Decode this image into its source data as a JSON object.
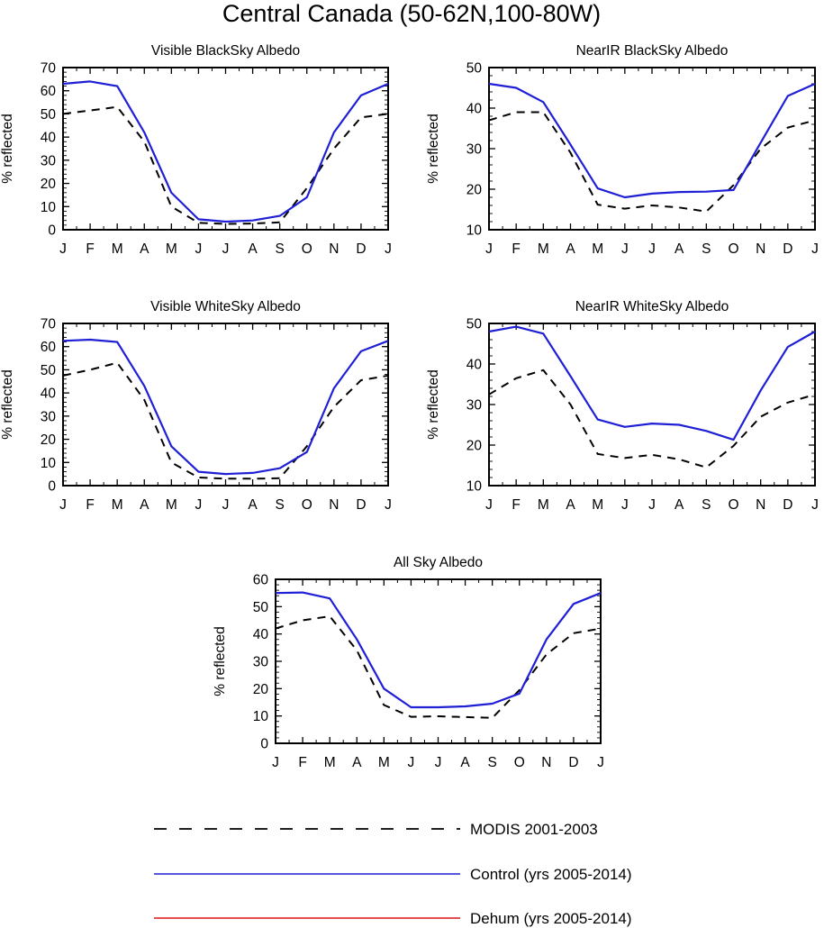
{
  "figure": {
    "title": "Central Canada (50-62N,100-80W)"
  },
  "colors": {
    "modis": "#000000",
    "control": "#1f1fd6",
    "dehum": "#e01010"
  },
  "legend": [
    {
      "label": "MODIS 2001-2003",
      "style": "dashed",
      "color": "#000000"
    },
    {
      "label": "Control (yrs 2005-2014)",
      "style": "solid",
      "color": "#1f1fd6"
    },
    {
      "label": "Dehum (yrs 2005-2014)",
      "style": "solid",
      "color": "#e01010"
    }
  ],
  "chart_data": [
    {
      "type": "line",
      "title": "Visible BlackSky Albedo",
      "ylabel": "% reflected",
      "categories": [
        "J",
        "F",
        "M",
        "A",
        "M",
        "J",
        "J",
        "A",
        "S",
        "O",
        "N",
        "D",
        "J"
      ],
      "ylim": [
        0,
        70
      ],
      "yticks": [
        0,
        10,
        20,
        30,
        40,
        50,
        60,
        70
      ],
      "series": [
        {
          "name": "MODIS 2001-2003",
          "values": [
            50,
            51.5,
            53,
            38,
            10,
            3,
            2.5,
            2.7,
            3.2,
            18,
            35,
            48.5,
            50
          ]
        },
        {
          "name": "Control (yrs 2005-2014)",
          "values": [
            63,
            64,
            62,
            42,
            16,
            4.5,
            3.5,
            4,
            6,
            14,
            42,
            58,
            63
          ]
        }
      ]
    },
    {
      "type": "line",
      "title": "NearIR BlackSky Albedo",
      "ylabel": "% reflected",
      "categories": [
        "J",
        "F",
        "M",
        "A",
        "M",
        "J",
        "J",
        "A",
        "S",
        "O",
        "N",
        "D",
        "J"
      ],
      "ylim": [
        10,
        50
      ],
      "yticks": [
        10,
        20,
        30,
        40,
        50
      ],
      "series": [
        {
          "name": "MODIS 2001-2003",
          "values": [
            37,
            39,
            39,
            29,
            16.2,
            15.2,
            16,
            15.5,
            14.5,
            21,
            30,
            35.2,
            37
          ]
        },
        {
          "name": "Control (yrs 2005-2014)",
          "values": [
            46,
            45,
            41.5,
            31,
            20.2,
            18,
            18.9,
            19.3,
            19.4,
            19.8,
            31.5,
            43,
            46
          ]
        }
      ]
    },
    {
      "type": "line",
      "title": "Visible WhiteSky Albedo",
      "ylabel": "% reflected",
      "categories": [
        "J",
        "F",
        "M",
        "A",
        "M",
        "J",
        "J",
        "A",
        "S",
        "O",
        "N",
        "D",
        "J"
      ],
      "ylim": [
        0,
        70
      ],
      "yticks": [
        0,
        10,
        20,
        30,
        40,
        50,
        60,
        70
      ],
      "series": [
        {
          "name": "MODIS 2001-2003",
          "values": [
            47.5,
            50,
            53,
            37,
            10,
            3.5,
            3,
            3,
            3.2,
            17,
            34,
            45.5,
            47.5
          ]
        },
        {
          "name": "Control (yrs 2005-2014)",
          "values": [
            62.5,
            63,
            62,
            43,
            17,
            6,
            5,
            5.5,
            7.5,
            14.5,
            42,
            58,
            62.5
          ]
        }
      ]
    },
    {
      "type": "line",
      "title": "NearIR WhiteSky Albedo",
      "ylabel": "% reflected",
      "categories": [
        "J",
        "F",
        "M",
        "A",
        "M",
        "J",
        "J",
        "A",
        "S",
        "O",
        "N",
        "D",
        "J"
      ],
      "ylim": [
        10,
        50
      ],
      "yticks": [
        10,
        20,
        30,
        40,
        50
      ],
      "series": [
        {
          "name": "MODIS 2001-2003",
          "values": [
            32.5,
            36.5,
            38.5,
            30,
            17.8,
            16.8,
            17.6,
            16.5,
            14.5,
            19.8,
            27,
            30.5,
            32.5
          ]
        },
        {
          "name": "Control (yrs 2005-2014)",
          "values": [
            48,
            49.2,
            47.5,
            37,
            26.3,
            24.5,
            25.3,
            25,
            23.5,
            21.3,
            33.5,
            44.2,
            48
          ]
        }
      ]
    },
    {
      "type": "line",
      "title": "All Sky Albedo",
      "ylabel": "% reflected",
      "categories": [
        "J",
        "F",
        "M",
        "A",
        "M",
        "J",
        "J",
        "A",
        "S",
        "O",
        "N",
        "D",
        "J"
      ],
      "ylim": [
        0,
        60
      ],
      "yticks": [
        0,
        10,
        20,
        30,
        40,
        50,
        60
      ],
      "series": [
        {
          "name": "MODIS 2001-2003",
          "values": [
            42,
            45,
            46.5,
            34,
            14,
            9.7,
            9.9,
            9.6,
            9.3,
            19.5,
            32.5,
            40.3,
            42
          ]
        },
        {
          "name": "Control (yrs 2005-2014)",
          "values": [
            55,
            55.2,
            53,
            38,
            20,
            13.2,
            13.2,
            13.5,
            14.5,
            18.2,
            38,
            51,
            55
          ]
        }
      ]
    }
  ]
}
